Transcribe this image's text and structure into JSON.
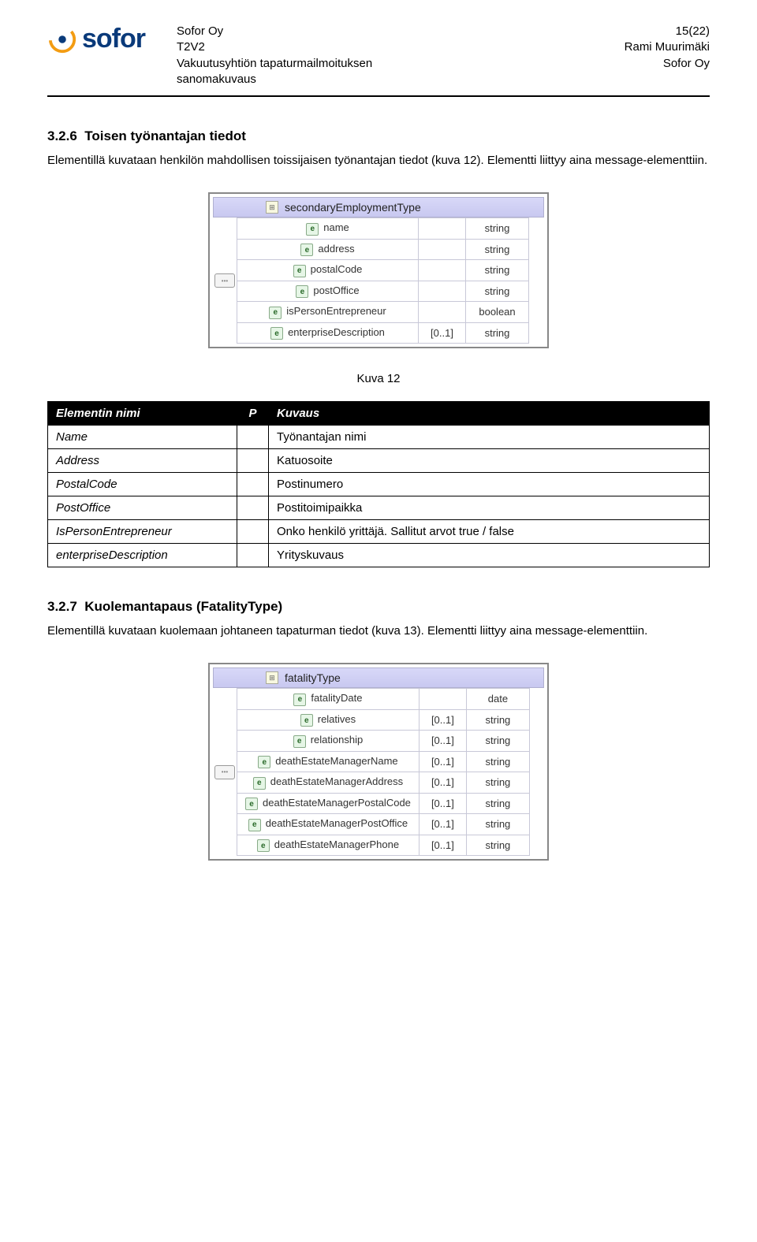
{
  "header": {
    "logo_text": "sofor",
    "mid_line1": "Sofor Oy",
    "mid_line2": "T2V2",
    "mid_line3": "Vakuutusyhtiön tapaturmailmoituksen",
    "mid_line4": "sanomakuvaus",
    "right_line1": "15(22)",
    "right_line2": "Rami Muurimäki",
    "right_line3": "Sofor Oy"
  },
  "section1": {
    "number": "3.2.6",
    "title": "Toisen työnantajan tiedot",
    "body": "Elementillä kuvataan henkilön mahdollisen toissijaisen työnantajan tiedot (kuva 12). Elementti liittyy aina message-elementtiin."
  },
  "schema1": {
    "header_label": "secondaryEmploymentType",
    "rows": [
      {
        "name": "name",
        "card": "",
        "type": "string"
      },
      {
        "name": "address",
        "card": "",
        "type": "string"
      },
      {
        "name": "postalCode",
        "card": "",
        "type": "string"
      },
      {
        "name": "postOffice",
        "card": "",
        "type": "string"
      },
      {
        "name": "isPersonEntrepreneur",
        "card": "",
        "type": "boolean"
      },
      {
        "name": "enterpriseDescription",
        "card": "[0..1]",
        "type": "string"
      }
    ]
  },
  "caption1": "Kuva 12",
  "table1": {
    "head_name": "Elementin nimi",
    "head_p": "P",
    "head_desc": "Kuvaus",
    "rows": [
      {
        "name": "Name",
        "p": "",
        "desc": "Työnantajan nimi"
      },
      {
        "name": "Address",
        "p": "",
        "desc": "Katuosoite"
      },
      {
        "name": "PostalCode",
        "p": "",
        "desc": "Postinumero"
      },
      {
        "name": "PostOffice",
        "p": "",
        "desc": "Postitoimipaikka"
      },
      {
        "name": "IsPersonEntrepreneur",
        "p": "",
        "desc": "Onko henkilö yrittäjä. Sallitut arvot true / false"
      },
      {
        "name": "enterpriseDescription",
        "p": "",
        "desc": "Yrityskuvaus"
      }
    ]
  },
  "section2": {
    "number": "3.2.7",
    "title": "Kuolemantapaus (FatalityType)",
    "body": "Elementillä kuvataan kuolemaan johtaneen tapaturman tiedot (kuva 13). Elementti liittyy aina message-elementtiin."
  },
  "schema2": {
    "header_label": "fatalityType",
    "rows": [
      {
        "name": "fatalityDate",
        "card": "",
        "type": "date"
      },
      {
        "name": "relatives",
        "card": "[0..1]",
        "type": "string"
      },
      {
        "name": "relationship",
        "card": "[0..1]",
        "type": "string"
      },
      {
        "name": "deathEstateManagerName",
        "card": "[0..1]",
        "type": "string"
      },
      {
        "name": "deathEstateManagerAddress",
        "card": "[0..1]",
        "type": "string"
      },
      {
        "name": "deathEstateManagerPostalCode",
        "card": "[0..1]",
        "type": "string"
      },
      {
        "name": "deathEstateManagerPostOffice",
        "card": "[0..1]",
        "type": "string"
      },
      {
        "name": "deathEstateManagerPhone",
        "card": "[0..1]",
        "type": "string"
      }
    ]
  }
}
